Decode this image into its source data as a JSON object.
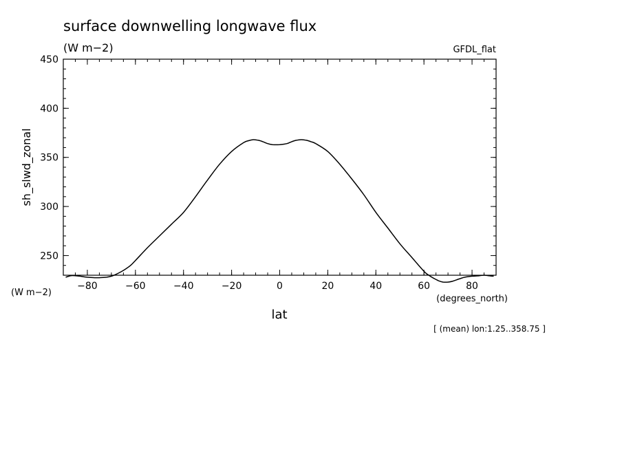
{
  "chart_data": {
    "type": "line",
    "title": "surface downwelling longwave flux",
    "units": "(W m−2)",
    "dataset": "GFDL_flat",
    "xlabel": "lat",
    "x_units": "(degrees_north)",
    "ylabel": "sh_slwd_zonal",
    "y_units": "(W m−2)",
    "footnote": "[ (mean) lon:1.25..358.75 ]",
    "xlim": [
      -90,
      90
    ],
    "ylim": [
      230,
      450
    ],
    "x_ticks": [
      -80,
      -60,
      -40,
      -20,
      0,
      20,
      40,
      60,
      80
    ],
    "y_ticks": [
      250,
      300,
      350,
      400,
      450
    ],
    "grid": false,
    "series": [
      {
        "x": [
          -89,
          -87,
          -85,
          -83,
          -80,
          -77,
          -75,
          -72,
          -70,
          -68,
          -66,
          -64,
          -62,
          -60,
          -55,
          -50,
          -45,
          -40,
          -35,
          -30,
          -25,
          -20,
          -15,
          -13,
          -11,
          -9,
          -7,
          -5,
          -3,
          0,
          3,
          5,
          7,
          9,
          11,
          13,
          15,
          20,
          25,
          30,
          35,
          40,
          45,
          50,
          55,
          60,
          62,
          64,
          66,
          68,
          70,
          72,
          75,
          77,
          80,
          83,
          85,
          87,
          89
        ],
        "y": [
          228,
          229.5,
          229.5,
          229,
          228,
          227.5,
          227.5,
          228,
          229,
          231,
          233.5,
          236.5,
          240,
          245,
          258,
          270,
          282,
          294,
          310,
          327,
          343,
          356,
          365,
          367,
          368,
          367.5,
          366,
          364,
          363,
          363,
          364,
          366,
          367.5,
          368,
          367.5,
          366,
          364,
          356,
          343,
          328,
          312,
          294,
          278,
          262,
          248,
          234,
          230,
          227,
          224.5,
          223,
          223,
          224,
          226.5,
          228,
          229,
          229.5,
          230,
          229.5,
          229
        ]
      }
    ]
  }
}
